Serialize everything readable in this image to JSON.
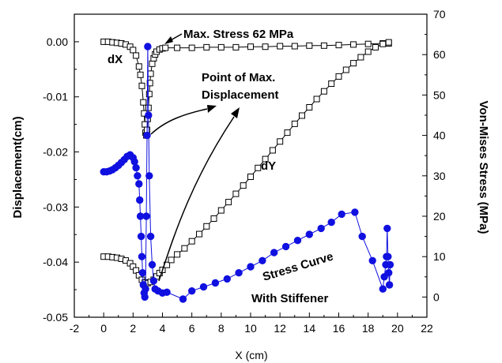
{
  "chart_data": {
    "type": "scatter",
    "xlabel": "X (cm)",
    "ylabel_left": "Displacement(cm)",
    "ylabel_right": "Von-Mises Stress (MPa)",
    "xlim": [
      -2,
      22
    ],
    "ylim_left": [
      -0.05,
      0.005
    ],
    "ylim_right": [
      -5,
      70
    ],
    "grid": false,
    "x_ticks": [
      "-2",
      "0",
      "2",
      "4",
      "6",
      "8",
      "10",
      "12",
      "14",
      "16",
      "18",
      "20",
      "22"
    ],
    "y_left_ticks": [
      "-0.05",
      "-0.04",
      "-0.03",
      "-0.02",
      "-0.01",
      "0.00"
    ],
    "y_right_ticks": [
      "0",
      "10",
      "20",
      "30",
      "40",
      "50",
      "60",
      "70"
    ],
    "annotations": {
      "max_stress": "Max. Stress 62 MPa",
      "dx_label": "dX",
      "max_disp_line1": "Point of Max.",
      "max_disp_line2": "Displacement",
      "dy_label": "dY",
      "stress_curve": "Stress Curve",
      "with_stiffener": "With Stiffener"
    },
    "series": [
      {
        "name": "dX",
        "axis": "left",
        "marker": "open-square",
        "color": "#000000",
        "x": [
          0,
          0.3,
          0.6,
          0.9,
          1.2,
          1.5,
          1.8,
          2.0,
          2.2,
          2.4,
          2.5,
          2.6,
          2.7,
          2.75,
          2.8,
          2.85,
          2.9,
          2.95,
          3.0,
          3.05,
          3.1,
          3.15,
          3.2,
          3.3,
          3.4,
          3.5,
          3.6,
          3.8,
          4.0,
          4.2,
          5.0,
          6.0,
          7.0,
          8.0,
          9.0,
          10.0,
          11.0,
          12.0,
          13.0,
          14.0,
          15.0,
          16.0,
          17.0,
          18.0,
          19.0,
          19.2,
          19.4
        ],
        "y": [
          0.0,
          0.0,
          -0.0001,
          -0.0002,
          -0.0003,
          -0.0005,
          -0.0009,
          -0.0015,
          -0.0025,
          -0.0045,
          -0.006,
          -0.008,
          -0.011,
          -0.013,
          -0.015,
          -0.0165,
          -0.017,
          -0.016,
          -0.014,
          -0.012,
          -0.0095,
          -0.0075,
          -0.0058,
          -0.004,
          -0.003,
          -0.0023,
          -0.0018,
          -0.0014,
          -0.0012,
          -0.0011,
          -0.0011,
          -0.0011,
          -0.001,
          -0.001,
          -0.001,
          -0.0009,
          -0.0009,
          -0.0008,
          -0.0008,
          -0.0007,
          -0.0007,
          -0.0006,
          -0.0005,
          -0.0004,
          -0.0003,
          -0.0003,
          -0.0003
        ]
      },
      {
        "name": "dY",
        "axis": "left",
        "marker": "open-square",
        "color": "#000000",
        "x": [
          0,
          0.3,
          0.6,
          0.9,
          1.2,
          1.5,
          1.8,
          2.0,
          2.2,
          2.4,
          2.6,
          2.8,
          3.0,
          3.2,
          3.4,
          3.6,
          3.8,
          4.0,
          4.3,
          4.6,
          5.0,
          5.5,
          6.0,
          6.5,
          7.0,
          7.5,
          8.0,
          8.5,
          9.0,
          9.5,
          10.0,
          10.5,
          11.0,
          11.5,
          12.0,
          12.5,
          13.0,
          13.5,
          14.0,
          14.5,
          15.0,
          15.5,
          16.0,
          16.5,
          17.0,
          17.5,
          18.0,
          18.5,
          19.0,
          19.4
        ],
        "y": [
          -0.039,
          -0.039,
          -0.0391,
          -0.0392,
          -0.0394,
          -0.0397,
          -0.0402,
          -0.0408,
          -0.0415,
          -0.0424,
          -0.0432,
          -0.0437,
          -0.0438,
          -0.0436,
          -0.0432,
          -0.0426,
          -0.042,
          -0.0414,
          -0.0405,
          -0.0396,
          -0.0386,
          -0.0375,
          -0.0362,
          -0.0349,
          -0.0335,
          -0.0321,
          -0.0306,
          -0.0291,
          -0.0276,
          -0.0261,
          -0.0245,
          -0.0229,
          -0.0213,
          -0.0197,
          -0.0181,
          -0.0165,
          -0.0149,
          -0.0134,
          -0.0119,
          -0.0104,
          -0.009,
          -0.0076,
          -0.0063,
          -0.0051,
          -0.0039,
          -0.0028,
          -0.0018,
          -0.001,
          -0.0004,
          -0.0001
        ]
      },
      {
        "name": "Stress Curve",
        "axis": "right",
        "marker": "filled-circle",
        "color": "#1010e0",
        "x": [
          0,
          0.2,
          0.4,
          0.6,
          0.8,
          1.0,
          1.2,
          1.4,
          1.6,
          1.8,
          2.0,
          2.1,
          2.2,
          2.3,
          2.4,
          2.45,
          2.5,
          2.55,
          2.6,
          2.65,
          2.7,
          2.75,
          2.8,
          2.85,
          2.9,
          2.95,
          3.0,
          3.05,
          3.1,
          3.2,
          3.3,
          3.4,
          3.5,
          3.7,
          4.0,
          4.3,
          5.4,
          6.0,
          6.8,
          7.6,
          8.4,
          9.2,
          10.0,
          10.8,
          11.6,
          12.4,
          13.2,
          14.0,
          14.8,
          15.5,
          16.2,
          17.1,
          17.6,
          18.3,
          19.0,
          19.1,
          19.2,
          19.25,
          19.3,
          19.35,
          19.4,
          19.45,
          19.5
        ],
        "y": [
          31,
          31,
          31.2,
          31.5,
          32,
          32.6,
          33.3,
          34,
          34.8,
          35.2,
          34.5,
          33.5,
          32,
          30,
          28,
          24,
          20,
          15,
          10,
          6,
          3,
          1,
          0,
          2,
          20,
          40,
          62,
          45,
          30,
          15,
          8,
          4,
          2,
          1.5,
          1,
          1.2,
          -0.5,
          1.5,
          2.5,
          3.5,
          4.5,
          6,
          7.5,
          9,
          11,
          12.5,
          14,
          15.5,
          17,
          18.5,
          20.5,
          21,
          15,
          9,
          2,
          5,
          8,
          10,
          17,
          10,
          6,
          3,
          8
        ]
      }
    ]
  }
}
